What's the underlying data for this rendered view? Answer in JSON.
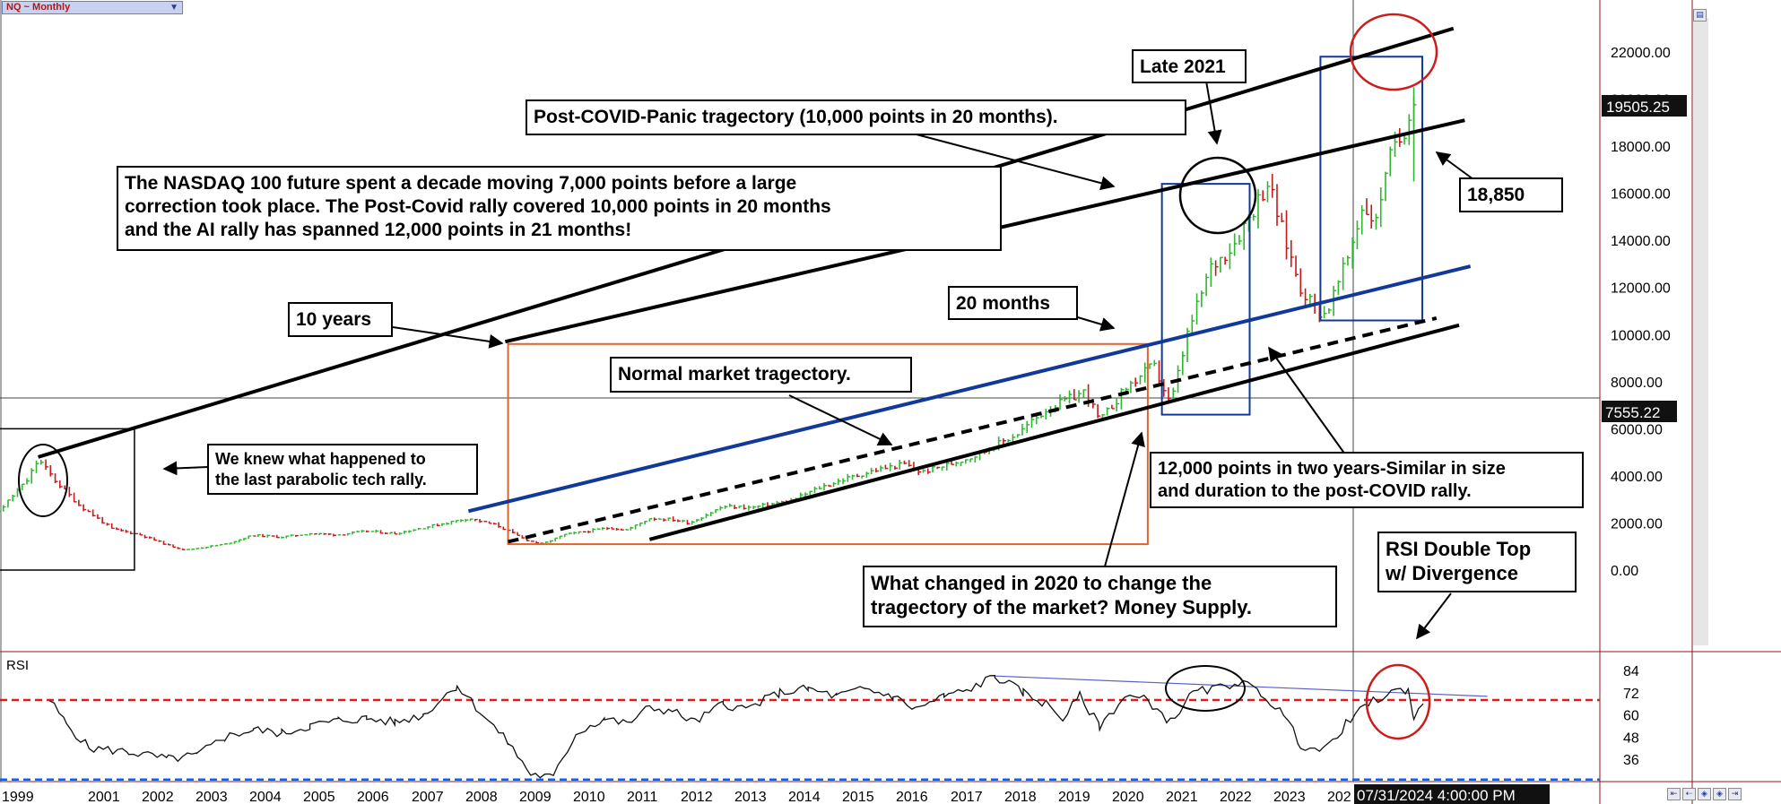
{
  "symbol": {
    "label": "NQ ~ Monthly"
  },
  "status": {
    "datetime": "07/31/2024 4:00:00 PM",
    "last_price": "19505.25",
    "crosshair_price": "7555.22"
  },
  "annotations": {
    "late2021": "Late 2021",
    "postcovid": "Post-COVID-Panic tragectory (10,000 points in 20 months).",
    "decade_1": "The NASDAQ 100 future spent a decade moving 7,000 points before a large",
    "decade_2": "correction took place. The Post-Covid rally covered 10,000 points in 20 months",
    "decade_3": "and the AI rally has spanned 12,000 points in 21 months!",
    "level": "18,850",
    "twentymonths": "20 months",
    "tenyears": "10 years",
    "normal": "Normal market tragectory.",
    "knew_1": "We knew what happened to",
    "knew_2": "the last parabolic tech rally.",
    "twelvek_1": "12,000 points in two years-Similar in size",
    "twelvek_2": "and duration to the post-COVID rally.",
    "changed_1": "What changed in 2020 to change the",
    "changed_2": "tragectory of the market? Money Supply.",
    "rsi_top_1": "RSI Double Top",
    "rsi_top_2": "w/ Divergence"
  },
  "toolbar_icons": [
    "scroll-start-icon",
    "scroll-back-icon",
    "zoom-out-icon",
    "zoom-in-icon",
    "scroll-end-icon"
  ],
  "colors": {
    "up_bar": "#2fb52f",
    "down_bar": "#c81818",
    "trend_blue": "#10399a",
    "box_orange": "#e0622c",
    "rsi_ref": "#e81818",
    "rsi_low_ref": "#1060e0"
  },
  "chart_data": [
    {
      "type": "bar",
      "title": "NQ ~ Monthly",
      "ylim": [
        -1000,
        23500
      ],
      "y_ticks": [
        0,
        2000,
        4000,
        6000,
        8000,
        10000,
        12000,
        14000,
        16000,
        18000,
        20000,
        22000
      ],
      "y_tick_labels": [
        "0.00",
        "2000.00",
        "4000.00",
        "6000.00",
        "8000.00",
        "10000.00",
        "12000.00",
        "14000.00",
        "16000.00",
        "18000.00",
        "20000.00",
        "22000.00"
      ],
      "x_ticks": [
        "1999",
        "2001",
        "2002",
        "2003",
        "2004",
        "2005",
        "2006",
        "2007",
        "2008",
        "2009",
        "2010",
        "2011",
        "2012",
        "2013",
        "2014",
        "2015",
        "2016",
        "2017",
        "2018",
        "2019",
        "2020",
        "2021",
        "2022",
        "2023",
        "202"
      ],
      "last_value": 19505.25,
      "price_path": [
        [
          1999.0,
          2100
        ],
        [
          1999.5,
          2500
        ],
        [
          2000.0,
          3800
        ],
        [
          2000.2,
          4700
        ],
        [
          2000.5,
          3800
        ],
        [
          2000.9,
          2800
        ],
        [
          2001.5,
          1750
        ],
        [
          2002.0,
          1500
        ],
        [
          2002.5,
          1050
        ],
        [
          2002.8,
          850
        ],
        [
          2003.5,
          1100
        ],
        [
          2004.0,
          1480
        ],
        [
          2004.5,
          1400
        ],
        [
          2005.0,
          1550
        ],
        [
          2005.5,
          1500
        ],
        [
          2006.0,
          1650
        ],
        [
          2006.5,
          1550
        ],
        [
          2007.0,
          1800
        ],
        [
          2007.8,
          2200
        ],
        [
          2008.3,
          1900
        ],
        [
          2008.8,
          1300
        ],
        [
          2009.1,
          1100
        ],
        [
          2009.5,
          1500
        ],
        [
          2010.3,
          1800
        ],
        [
          2010.6,
          1700
        ],
        [
          2011.0,
          2200
        ],
        [
          2011.4,
          2150
        ],
        [
          2011.7,
          2000
        ],
        [
          2012.3,
          2700
        ],
        [
          2012.8,
          2650
        ],
        [
          2013.5,
          2950
        ],
        [
          2014.0,
          3500
        ],
        [
          2014.5,
          3900
        ],
        [
          2015.0,
          4250
        ],
        [
          2015.5,
          4500
        ],
        [
          2015.8,
          4150
        ],
        [
          2016.3,
          4500
        ],
        [
          2016.8,
          4900
        ],
        [
          2017.5,
          5800
        ],
        [
          2018.0,
          6800
        ],
        [
          2018.7,
          7600
        ],
        [
          2018.95,
          6300
        ],
        [
          2019.4,
          7700
        ],
        [
          2019.9,
          8700
        ],
        [
          2020.2,
          7000
        ],
        [
          2020.5,
          10000
        ],
        [
          2020.9,
          12800
        ],
        [
          2021.3,
          13800
        ],
        [
          2021.7,
          15500
        ],
        [
          2021.92,
          16500
        ],
        [
          2022.2,
          14200
        ],
        [
          2022.5,
          12000
        ],
        [
          2022.8,
          11000
        ],
        [
          2022.95,
          10900
        ],
        [
          2023.3,
          13000
        ],
        [
          2023.6,
          15500
        ],
        [
          2023.85,
          14700
        ],
        [
          2023.98,
          17000
        ],
        [
          2024.3,
          18500
        ],
        [
          2024.55,
          20600
        ],
        [
          2024.58,
          19505
        ]
      ],
      "annotation_lines": {
        "parabolic_top_line": [
          [
            2000.2,
            4800
          ],
          [
            2025.2,
            23000
          ]
        ],
        "tenyear_upper_line": [
          [
            2008.45,
            9700
          ],
          [
            2025.4,
            19100
          ]
        ],
        "blue_channel_line": [
          [
            2007.8,
            2500
          ],
          [
            2025.5,
            12900
          ]
        ],
        "dashed_trend_line": [
          [
            2008.5,
            1200
          ],
          [
            2024.9,
            10700
          ]
        ],
        "lower_support_line": [
          [
            2011.0,
            1300
          ],
          [
            2025.3,
            10400
          ]
        ]
      },
      "annotation_boxes": {
        "dotcom_box": [
          [
            1999.1,
            0
          ],
          [
            2001.9,
            6000
          ]
        ],
        "decade_box": [
          [
            2008.5,
            1100
          ],
          [
            2019.8,
            9600
          ]
        ],
        "covid_box": [
          [
            2020.05,
            6600
          ],
          [
            2021.6,
            16400
          ]
        ],
        "ai_box": [
          [
            2022.85,
            10600
          ],
          [
            2024.65,
            21800
          ]
        ]
      }
    },
    {
      "type": "line",
      "title": "RSI",
      "ylim": [
        24,
        90
      ],
      "y_ticks": [
        36,
        48,
        60,
        72,
        84
      ],
      "reference_lines": [
        68,
        25
      ],
      "divergence_line": [
        [
          2017.1,
          81
        ],
        [
          2025.8,
          70
        ]
      ],
      "values": [
        [
          2000.4,
          68
        ],
        [
          2000.7,
          55
        ],
        [
          2001.1,
          42
        ],
        [
          2001.8,
          40
        ],
        [
          2002.5,
          36
        ],
        [
          2003.0,
          38
        ],
        [
          2003.5,
          48
        ],
        [
          2004.0,
          52
        ],
        [
          2004.5,
          50
        ],
        [
          2005.0,
          54
        ],
        [
          2005.5,
          57
        ],
        [
          2006.0,
          58
        ],
        [
          2006.5,
          56
        ],
        [
          2007.0,
          60
        ],
        [
          2007.6,
          76
        ],
        [
          2008.0,
          62
        ],
        [
          2008.5,
          45
        ],
        [
          2008.9,
          28
        ],
        [
          2009.3,
          26
        ],
        [
          2009.7,
          50
        ],
        [
          2010.2,
          58
        ],
        [
          2010.6,
          55
        ],
        [
          2011.0,
          64
        ],
        [
          2011.4,
          62
        ],
        [
          2011.8,
          56
        ],
        [
          2012.3,
          66
        ],
        [
          2012.7,
          63
        ],
        [
          2013.3,
          72
        ],
        [
          2013.8,
          74
        ],
        [
          2014.3,
          70
        ],
        [
          2014.8,
          74
        ],
        [
          2015.3,
          70
        ],
        [
          2015.7,
          63
        ],
        [
          2016.2,
          70
        ],
        [
          2016.6,
          73
        ],
        [
          2017.1,
          81
        ],
        [
          2017.6,
          72
        ],
        [
          2018.0,
          66
        ],
        [
          2018.3,
          58
        ],
        [
          2018.6,
          70
        ],
        [
          2018.95,
          54
        ],
        [
          2019.4,
          70
        ],
        [
          2019.8,
          68
        ],
        [
          2020.2,
          56
        ],
        [
          2020.6,
          72
        ],
        [
          2021.0,
          74
        ],
        [
          2021.4,
          78
        ],
        [
          2021.8,
          72
        ],
        [
          2022.2,
          60
        ],
        [
          2022.5,
          44
        ],
        [
          2022.9,
          40
        ],
        [
          2023.3,
          55
        ],
        [
          2023.7,
          66
        ],
        [
          2024.1,
          72
        ],
        [
          2024.4,
          74
        ],
        [
          2024.5,
          58
        ],
        [
          2024.7,
          67
        ]
      ]
    }
  ]
}
